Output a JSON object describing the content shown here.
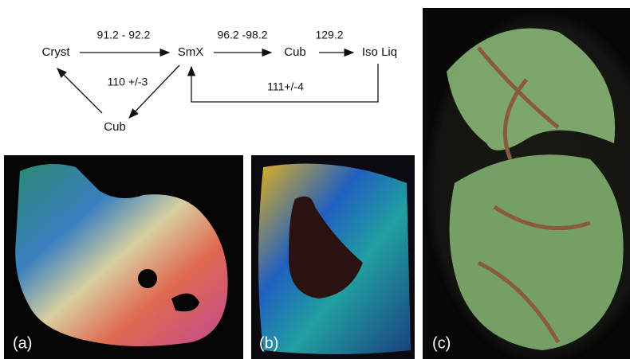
{
  "nodes": [
    {
      "label": "Cryst"
    },
    {
      "label": "SmX"
    },
    {
      "label": "Cub"
    },
    {
      "label": "Iso Liq"
    },
    {
      "label": "Cub"
    }
  ],
  "edges": [
    {
      "label": "91.2 - 92.2"
    },
    {
      "label": "96.2 -98.2"
    },
    {
      "label": "129.2"
    },
    {
      "label": "110 +/-3"
    },
    {
      "label": "111+/-4"
    }
  ],
  "panels": [
    {
      "label": "(a)"
    },
    {
      "label": "(b)"
    },
    {
      "label": "(c)"
    }
  ]
}
